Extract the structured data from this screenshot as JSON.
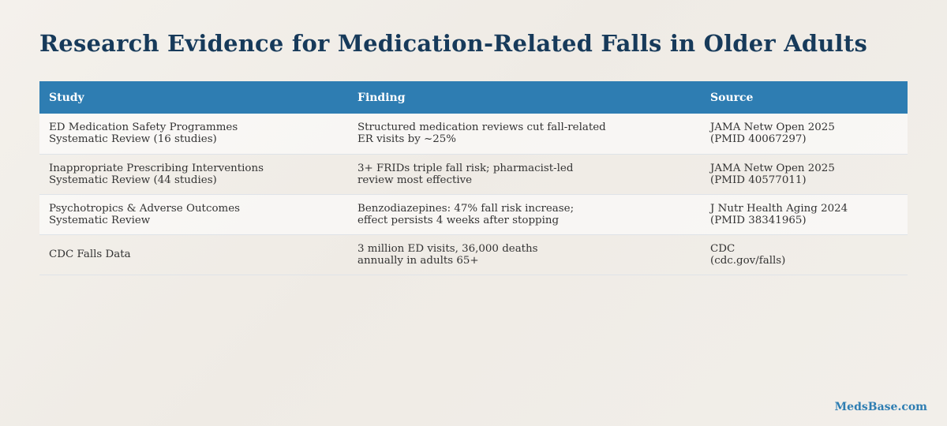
{
  "page": {
    "title": "Research Evidence for Medication-Related Falls in Older Adults",
    "brand": "MedsBase.com"
  },
  "table": {
    "headers": [
      "Study",
      "Finding",
      "Source"
    ],
    "rows": [
      {
        "study": [
          "ED Medication Safety Programmes",
          "Systematic Review (16 studies)"
        ],
        "finding": [
          "Structured medication reviews cut fall-related",
          "ER visits by ~25%"
        ],
        "source": [
          "JAMA Netw Open 2025",
          "(PMID 40067297)"
        ]
      },
      {
        "study": [
          "Inappropriate Prescribing Interventions",
          "Systematic Review (44 studies)"
        ],
        "finding": [
          "3+ FRIDs triple fall risk; pharmacist-led",
          "review most effective"
        ],
        "source": [
          "JAMA Netw Open 2025",
          "(PMID 40577011)"
        ]
      },
      {
        "study": [
          "Psychotropics & Adverse Outcomes",
          "Systematic Review"
        ],
        "finding": [
          "Benzodiazepines: 47% fall risk increase;",
          "effect persists 4 weeks after stopping"
        ],
        "source": [
          "J Nutr Health Aging 2024",
          "(PMID 38341965)"
        ]
      },
      {
        "study": [
          "CDC Falls Data"
        ],
        "finding": [
          "3 million ED visits, 36,000 deaths",
          "annually in adults 65+"
        ],
        "source": [
          "CDC",
          "(cdc.gov/falls)"
        ]
      }
    ]
  },
  "colors": {
    "title": "#173a5a",
    "header_background": "#2e7db2",
    "header_text": "#ffffff",
    "brand": "#2e7db2"
  }
}
